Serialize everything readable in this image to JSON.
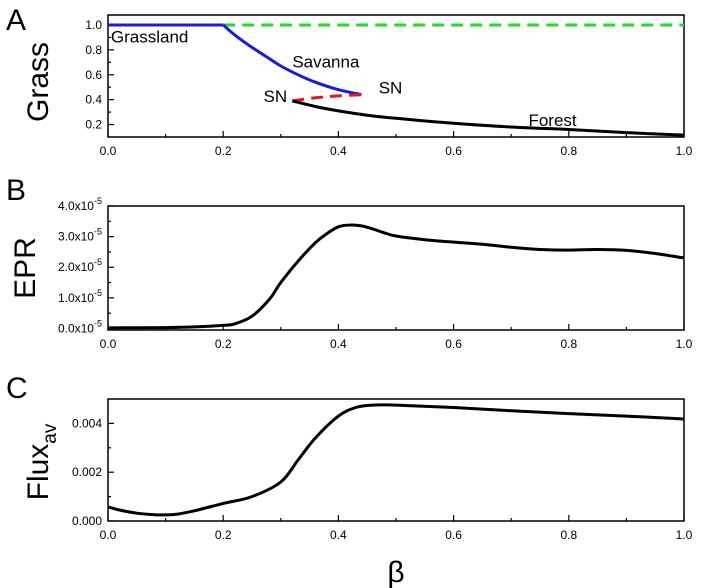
{
  "chart_data": [
    {
      "type": "line",
      "panel_label": "A",
      "ylabel": "Grass",
      "xlabel": "",
      "xlim": [
        0,
        1
      ],
      "ylim": [
        0.1,
        1.08
      ],
      "xticks": [
        "0.0",
        "0.2",
        "0.4",
        "0.6",
        "0.8",
        "1.0"
      ],
      "yticks": [
        "0.2",
        "0.4",
        "0.6",
        "0.8",
        "1.0"
      ],
      "series": [
        {
          "name": "grassland-stable",
          "color": "#1a1adb",
          "style": "solid",
          "x": [
            0,
            0.2
          ],
          "y": [
            1.0,
            1.0
          ]
        },
        {
          "name": "grassland-unstable",
          "color": "#22dd22",
          "style": "dashed",
          "x": [
            0.2,
            1.0
          ],
          "y": [
            1.0,
            1.0
          ]
        },
        {
          "name": "savanna",
          "color": "#1a1adb",
          "style": "solid",
          "x": [
            0.2,
            0.22,
            0.25,
            0.28,
            0.3,
            0.33,
            0.36,
            0.4,
            0.44
          ],
          "y": [
            1.0,
            0.92,
            0.82,
            0.73,
            0.67,
            0.6,
            0.54,
            0.48,
            0.44
          ]
        },
        {
          "name": "unstable-branch",
          "color": "#e01818",
          "style": "dashed",
          "x": [
            0.32,
            0.36,
            0.4,
            0.44
          ],
          "y": [
            0.39,
            0.415,
            0.43,
            0.44
          ]
        },
        {
          "name": "forest",
          "color": "#000000",
          "style": "solid",
          "x": [
            0.32,
            0.36,
            0.4,
            0.45,
            0.5,
            0.6,
            0.7,
            0.8,
            0.9,
            1.0
          ],
          "y": [
            0.39,
            0.345,
            0.31,
            0.275,
            0.25,
            0.21,
            0.18,
            0.16,
            0.135,
            0.115
          ]
        }
      ],
      "annotations": [
        {
          "text": "Grassland",
          "x": 0.005,
          "y": 0.86
        },
        {
          "text": "Savanna",
          "x": 0.32,
          "y": 0.66
        },
        {
          "text": "SN",
          "x": 0.27,
          "y": 0.38
        },
        {
          "text": "SN",
          "x": 0.47,
          "y": 0.45
        },
        {
          "text": "Forest",
          "x": 0.73,
          "y": 0.19
        }
      ]
    },
    {
      "type": "line",
      "panel_label": "B",
      "ylabel": "EPR",
      "xlabel": "",
      "xlim": [
        0,
        1
      ],
      "ylim": [
        -0.05,
        4.0
      ],
      "y_multiplier": "x10",
      "y_exponent": "-5",
      "xticks": [
        "0.0",
        "0.2",
        "0.4",
        "0.6",
        "0.8",
        "1.0"
      ],
      "yticks": [
        "0.0",
        "1.0",
        "2.0",
        "3.0",
        "4.0"
      ],
      "series": [
        {
          "name": "EPR",
          "color": "#000000",
          "style": "solid",
          "x": [
            0,
            0.1,
            0.15,
            0.2,
            0.22,
            0.25,
            0.28,
            0.3,
            0.33,
            0.36,
            0.38,
            0.4,
            0.42,
            0.44,
            0.46,
            0.48,
            0.5,
            0.55,
            0.6,
            0.65,
            0.7,
            0.75,
            0.8,
            0.85,
            0.9,
            0.95,
            1.0
          ],
          "y": [
            0.02,
            0.03,
            0.05,
            0.1,
            0.15,
            0.4,
            0.95,
            1.5,
            2.2,
            2.8,
            3.1,
            3.32,
            3.38,
            3.35,
            3.25,
            3.12,
            3.02,
            2.9,
            2.82,
            2.75,
            2.65,
            2.58,
            2.56,
            2.58,
            2.55,
            2.45,
            2.3
          ]
        }
      ]
    },
    {
      "type": "line",
      "panel_label": "C",
      "ylabel": "Flux",
      "ylabel_subscript": "av",
      "xlabel": "β",
      "xlim": [
        0,
        1
      ],
      "ylim": [
        0,
        0.005
      ],
      "xticks": [
        "0.0",
        "0.2",
        "0.4",
        "0.6",
        "0.8",
        "1.0"
      ],
      "yticks": [
        "0.000",
        "0.002",
        "0.004"
      ],
      "series": [
        {
          "name": "Flux_av",
          "color": "#000000",
          "style": "solid",
          "x": [
            0,
            0.02,
            0.05,
            0.08,
            0.1,
            0.12,
            0.15,
            0.2,
            0.25,
            0.3,
            0.33,
            0.36,
            0.4,
            0.43,
            0.46,
            0.48,
            0.5,
            0.6,
            0.7,
            0.8,
            0.9,
            1.0
          ],
          "y": [
            0.00058,
            0.00045,
            0.00032,
            0.00026,
            0.00025,
            0.00028,
            0.00042,
            0.00072,
            0.001,
            0.0016,
            0.0025,
            0.0034,
            0.0043,
            0.00465,
            0.00475,
            0.00476,
            0.00475,
            0.00465,
            0.00452,
            0.0044,
            0.0043,
            0.00418
          ]
        }
      ]
    }
  ]
}
